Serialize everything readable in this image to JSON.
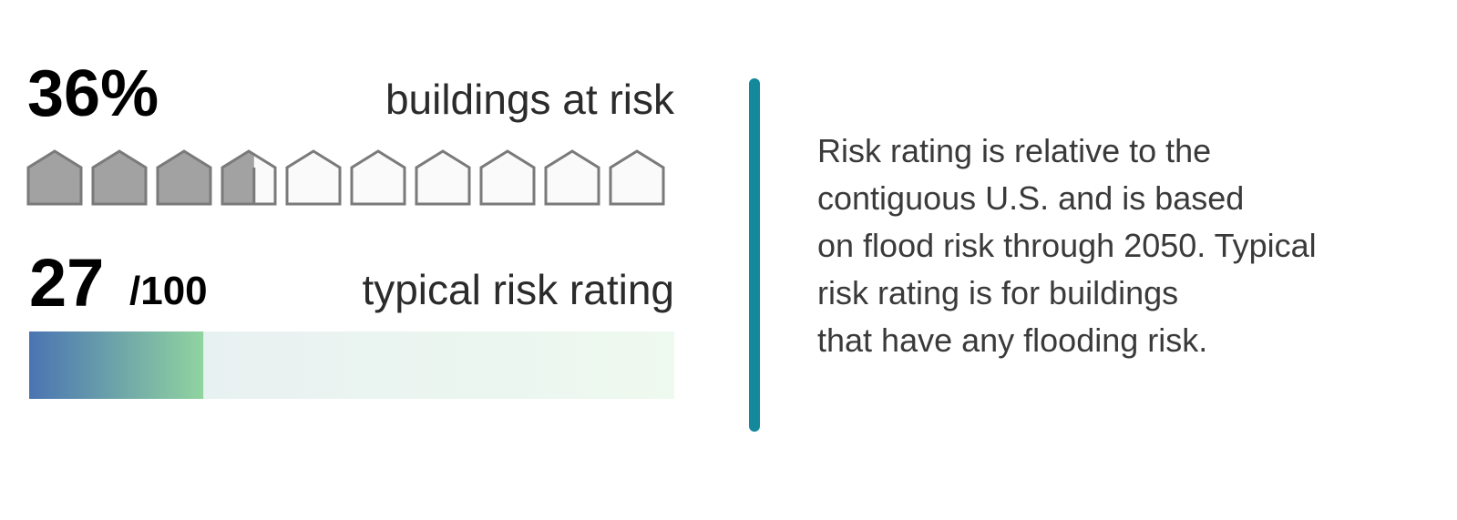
{
  "buildings": {
    "value": 36,
    "value_label": "36%",
    "label": "buildings at risk"
  },
  "rating": {
    "value": 27,
    "value_label": "27",
    "scale_label": "/100",
    "max": 100,
    "label": "typical risk rating"
  },
  "note": {
    "lines": [
      "Risk rating is relative to the",
      "contiguous U.S. and is based",
      "on flood risk through 2050. Typical",
      "risk rating is for buildings",
      "that have any flooding risk."
    ]
  }
}
